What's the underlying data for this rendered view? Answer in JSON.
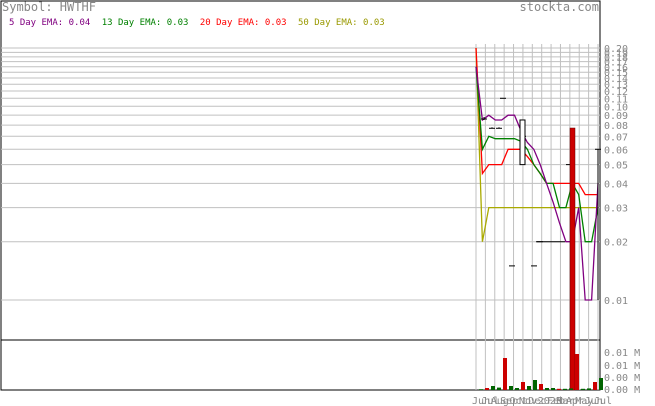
{
  "header": {
    "symbol_label": "Symbol: HWTHF",
    "site": "stockta.com"
  },
  "legend": [
    {
      "label": "5 Day EMA:",
      "value": "0.04",
      "color": "#800080"
    },
    {
      "label": "13 Day EMA:",
      "value": "0.03",
      "color": "#008000"
    },
    {
      "label": "20 Day EMA:",
      "value": "0.03",
      "color": "#ff0000"
    },
    {
      "label": "50 Day EMA:",
      "value": "0.03",
      "color": "#999900"
    }
  ],
  "colors": {
    "ema5": "#800080",
    "ema13": "#008000",
    "ema20": "#ff0000",
    "ema50": "#aaaa00",
    "grid": "#c0c0c0",
    "up_volume": "#006400",
    "down_volume": "#cc0000",
    "axis_text": "#888888"
  },
  "chart_data": {
    "type": "line",
    "title": "Symbol: HWTHF",
    "price_axis": {
      "scale": "log",
      "tick_labels": [
        "0.20",
        "0.19",
        "0.18",
        "0.17",
        "0.16",
        "0.15",
        "0.14",
        "0.13",
        "0.12",
        "0.11",
        "0.10",
        "0.09",
        "0.08",
        "0.07",
        "0.06",
        "0.05",
        "0.04",
        "0.03",
        "0.02",
        "0.01"
      ]
    },
    "volume_axis": {
      "tick_labels": [
        "0.01 M",
        "0.01 M",
        "0.00 M",
        "0.00 M"
      ]
    },
    "x_tick_labels": [
      "Jun",
      "Jul",
      "Aug",
      "Sep",
      "Oct",
      "Nov",
      "Dec",
      "2023",
      "Feb",
      "Mar",
      "Apr",
      "May",
      "Jun",
      "Jul"
    ],
    "ema5": [
      0.16,
      0.085,
      0.09,
      0.085,
      0.085,
      0.09,
      0.09,
      0.075,
      0.065,
      0.06,
      0.05,
      0.04,
      0.032,
      0.025,
      0.02,
      0.02,
      0.03,
      0.01,
      0.01,
      0.04
    ],
    "ema13": [
      0.16,
      0.06,
      0.07,
      0.068,
      0.068,
      0.068,
      0.068,
      0.066,
      0.06,
      0.05,
      0.045,
      0.04,
      0.04,
      0.03,
      0.03,
      0.04,
      0.035,
      0.02,
      0.02,
      0.03
    ],
    "ema20": [
      0.2,
      0.045,
      0.05,
      0.05,
      0.05,
      0.06,
      0.06,
      0.06,
      0.055,
      0.05,
      0.045,
      0.04,
      0.04,
      0.04,
      0.04,
      0.04,
      0.04,
      0.035,
      0.035,
      0.035
    ],
    "ema50": [
      0.2,
      0.02,
      0.03,
      0.03,
      0.03,
      0.03,
      0.03,
      0.03,
      0.03,
      0.03,
      0.03,
      0.03,
      0.03,
      0.03,
      0.03,
      0.03,
      0.03,
      0.03,
      0.03,
      0.03
    ],
    "ohlc": [
      {
        "high": 0.088,
        "low": 0.085,
        "close": 0.086
      },
      {
        "high": 0.078,
        "low": 0.077,
        "close": 0.077
      },
      {
        "high": 0.078,
        "low": 0.077,
        "close": 0.077
      },
      {
        "high": 0.11,
        "low": 0.11,
        "close": 0.11
      },
      {
        "high": 0.015,
        "low": 0.015,
        "close": 0.015
      },
      {
        "high": 0.08,
        "low": 0.05,
        "close": 0.07
      },
      {
        "high": 0.015,
        "low": 0.015,
        "close": 0.015
      },
      {
        "high": 0.02,
        "low": 0.02,
        "close": 0.02
      },
      {
        "high": 0.05,
        "low": 0.05,
        "close": 0.05
      },
      {
        "high": 0.06,
        "low": 0.01,
        "close": 0.06
      }
    ],
    "volume_relative": [
      0.02,
      0.05,
      0.1,
      0.06,
      0.8,
      0.1,
      0.05,
      0.2,
      0.1,
      0.25,
      0.15,
      0.05,
      0.05,
      0.03,
      0.03,
      0.04,
      0.9,
      0.03,
      0.04,
      0.2,
      0.3
    ]
  }
}
